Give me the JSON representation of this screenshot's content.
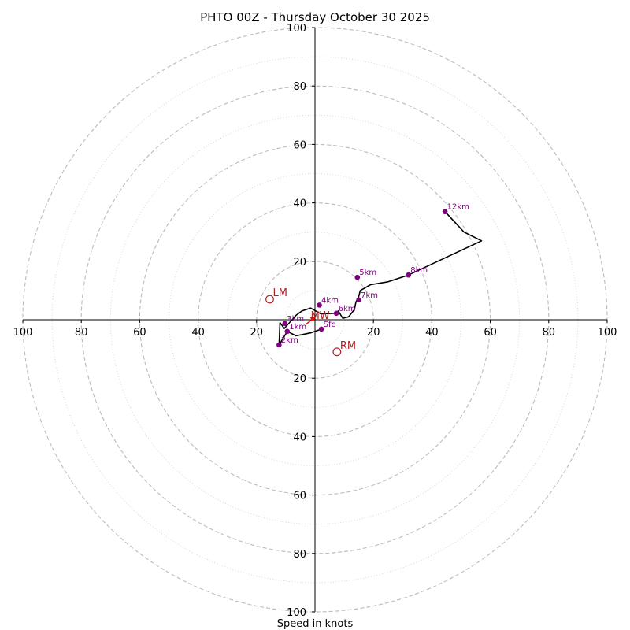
{
  "chart_data": {
    "type": "hodograph",
    "title": "PHTO 00Z - Thursday October 30 2025",
    "xlabel": "Speed in knots",
    "ylim": [
      -100,
      100
    ],
    "xlim": [
      -100,
      100
    ],
    "ring_values": [
      20,
      40,
      60,
      80,
      100
    ],
    "x_ticks": [
      {
        "value": -100,
        "label": "100"
      },
      {
        "value": -80,
        "label": "80"
      },
      {
        "value": -60,
        "label": "60"
      },
      {
        "value": -40,
        "label": "40"
      },
      {
        "value": -20,
        "label": "20"
      },
      {
        "value": 20,
        "label": "20"
      },
      {
        "value": 40,
        "label": "40"
      },
      {
        "value": 60,
        "label": "60"
      },
      {
        "value": 80,
        "label": "80"
      },
      {
        "value": 100,
        "label": "100"
      }
    ],
    "y_ticks": [
      {
        "value": 100,
        "label": "100"
      },
      {
        "value": 80,
        "label": "80"
      },
      {
        "value": 60,
        "label": "60"
      },
      {
        "value": 40,
        "label": "40"
      },
      {
        "value": 20,
        "label": "20"
      },
      {
        "value": -20,
        "label": "20"
      },
      {
        "value": -40,
        "label": "40"
      },
      {
        "value": -60,
        "label": "60"
      },
      {
        "value": -80,
        "label": "80"
      },
      {
        "value": -100,
        "label": "100"
      }
    ],
    "hodograph_trace": [
      [
        2.2,
        -3.2
      ],
      [
        -1.5,
        -4.5
      ],
      [
        -6.5,
        -5.5
      ],
      [
        -9.5,
        -4.0
      ],
      [
        -12.3,
        -8.6
      ],
      [
        -12.0,
        -1.0
      ],
      [
        -10.5,
        -3.0
      ],
      [
        -6.5,
        1.5
      ],
      [
        -4.5,
        3.0
      ],
      [
        -1.5,
        4.0
      ],
      [
        2,
        2
      ],
      [
        7.0,
        2.2
      ],
      [
        8,
        3
      ],
      [
        9.5,
        0.5
      ],
      [
        11.5,
        1.0
      ],
      [
        13.5,
        3.5
      ],
      [
        14,
        6
      ],
      [
        15,
        8
      ],
      [
        15.5,
        10
      ],
      [
        19,
        12
      ],
      [
        25,
        13
      ],
      [
        32.0,
        15.3
      ],
      [
        57,
        27
      ],
      [
        51,
        30
      ],
      [
        44.5,
        37
      ]
    ],
    "height_points": [
      {
        "label": "Sfc",
        "u": 2.2,
        "v": -3.2
      },
      {
        "label": "1km",
        "u": -9.5,
        "v": -4.0
      },
      {
        "label": "2km",
        "u": -12.3,
        "v": -8.6
      },
      {
        "label": "3km",
        "u": -10.3,
        "v": -1.3
      },
      {
        "label": "4km",
        "u": 1.5,
        "v": 5.0
      },
      {
        "label": "5km",
        "u": 14.5,
        "v": 14.5
      },
      {
        "label": "6km",
        "u": 7.3,
        "v": 2.2
      },
      {
        "label": "7km",
        "u": 15.0,
        "v": 6.8
      },
      {
        "label": "8km",
        "u": 32.0,
        "v": 15.3
      },
      {
        "label": "12km",
        "u": 44.5,
        "v": 37.0
      }
    ],
    "storm_motions": [
      {
        "label": "LM",
        "u": -15.5,
        "v": 7.0
      },
      {
        "label": "RM",
        "u": 7.5,
        "v": -11.0
      }
    ],
    "mean_wind": {
      "label": "MW",
      "u": -2.0,
      "v": -0.5
    }
  },
  "colors": {
    "trace": "#000000",
    "height_point": "#800080",
    "storm_motion": "#b22222",
    "mean_wind": "#ff0000",
    "grid": "#bbbbbb"
  }
}
